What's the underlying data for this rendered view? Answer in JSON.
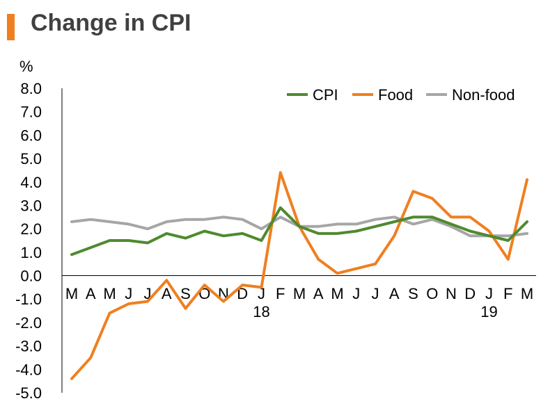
{
  "chart_data": {
    "type": "line",
    "title": "Change in CPI",
    "ylabel": "%",
    "xlabel": "",
    "ylim": [
      -5.0,
      8.0
    ],
    "yticks": [
      "8.0",
      "7.0",
      "6.0",
      "5.0",
      "4.0",
      "3.0",
      "2.0",
      "1.0",
      "0.0",
      "-1.0",
      "-2.0",
      "-3.0",
      "-4.0",
      "-5.0"
    ],
    "categories": [
      "M",
      "A",
      "M",
      "J",
      "J",
      "A",
      "S",
      "O",
      "N",
      "D",
      "J",
      "F",
      "M",
      "A",
      "M",
      "J",
      "J",
      "A",
      "S",
      "O",
      "N",
      "D",
      "J",
      "F",
      "M"
    ],
    "year_labels": [
      {
        "index": 10,
        "label": "18"
      },
      {
        "index": 22,
        "label": "19"
      }
    ],
    "grid": false,
    "legend_position": "top-right",
    "series": [
      {
        "name": "CPI",
        "color": "#4e8a2e",
        "values": [
          0.9,
          1.2,
          1.5,
          1.5,
          1.4,
          1.8,
          1.6,
          1.9,
          1.7,
          1.8,
          1.5,
          2.9,
          2.1,
          1.8,
          1.8,
          1.9,
          2.1,
          2.3,
          2.5,
          2.5,
          2.2,
          1.9,
          1.7,
          1.5,
          2.3
        ]
      },
      {
        "name": "Food",
        "color": "#f07f1f",
        "values": [
          -4.4,
          -3.5,
          -1.6,
          -1.2,
          -1.1,
          -0.2,
          -1.4,
          -0.4,
          -1.1,
          -0.4,
          -0.5,
          4.4,
          2.1,
          0.7,
          0.1,
          0.3,
          0.5,
          1.7,
          3.6,
          3.3,
          2.5,
          2.5,
          1.9,
          0.7,
          4.1
        ]
      },
      {
        "name": "Non-food",
        "color": "#a6a6a6",
        "values": [
          2.3,
          2.4,
          2.3,
          2.2,
          2.0,
          2.3,
          2.4,
          2.4,
          2.5,
          2.4,
          2.0,
          2.5,
          2.1,
          2.1,
          2.2,
          2.2,
          2.4,
          2.5,
          2.2,
          2.4,
          2.1,
          1.7,
          1.7,
          1.7,
          1.8
        ]
      }
    ]
  }
}
